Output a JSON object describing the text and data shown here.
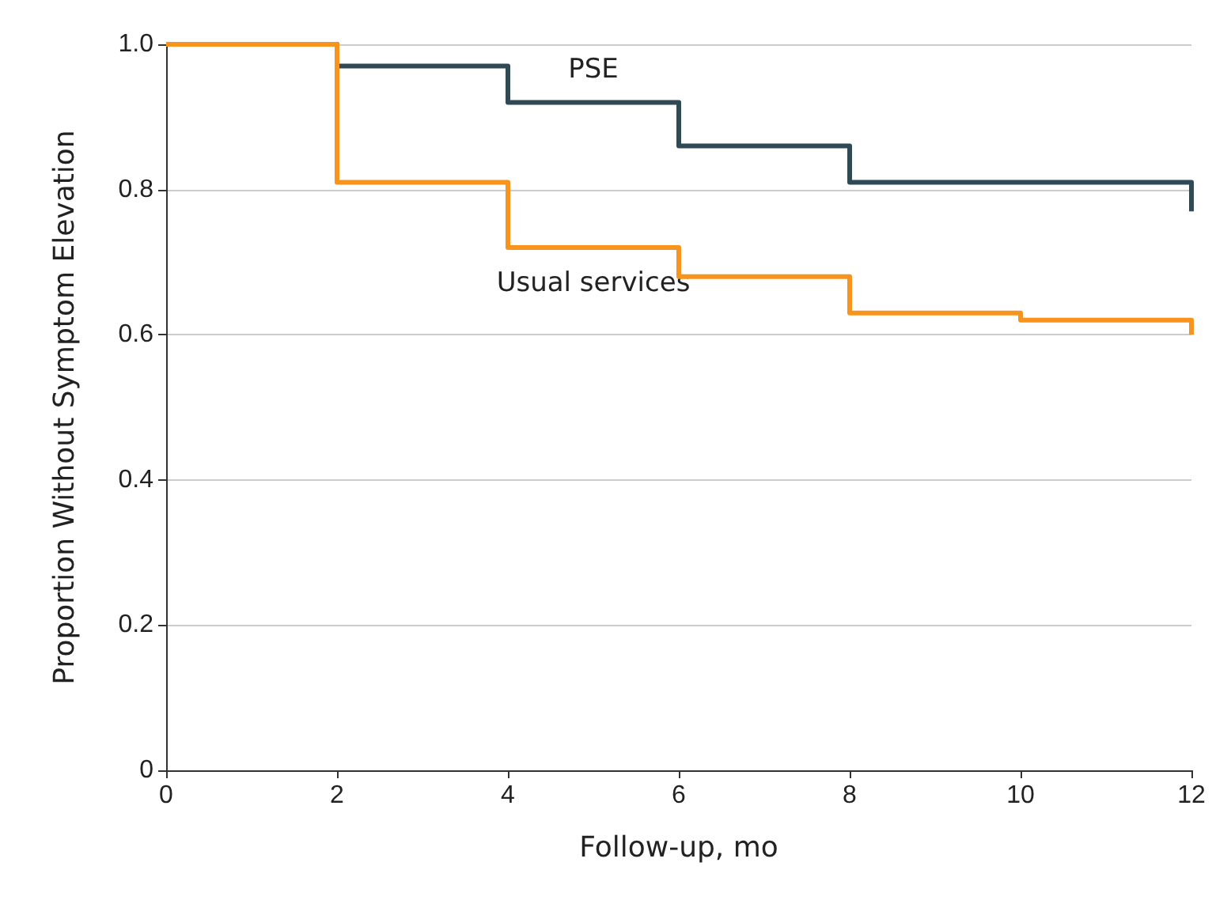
{
  "chart_data": {
    "type": "step",
    "xlabel": "Follow-up, mo",
    "ylabel": "Proportion Without Symptom Elevation",
    "series": [
      {
        "name": "PSE",
        "color": "#2f4a55",
        "x": [
          0,
          2,
          4,
          6,
          8,
          12,
          12
        ],
        "values": [
          1,
          0.97,
          0.92,
          0.86,
          0.81,
          0.81,
          0.77
        ]
      },
      {
        "name": "Usual services",
        "color": "#f7941d",
        "x": [
          0,
          2,
          4,
          6,
          8,
          10,
          12,
          12
        ],
        "values": [
          1,
          0.81,
          0.72,
          0.68,
          0.63,
          0.62,
          0.62,
          0.6
        ]
      }
    ],
    "xlim": [
      0,
      12
    ],
    "xticks": [
      0,
      2,
      4,
      6,
      8,
      10,
      12
    ],
    "ylim": [
      0,
      1
    ],
    "yticks": [
      0,
      0.2,
      0.4,
      0.6,
      0.8,
      {
        "value": 1,
        "label": "1.0"
      }
    ],
    "grid": "y",
    "legend": false,
    "marker": "none",
    "line_style": "solid"
  }
}
